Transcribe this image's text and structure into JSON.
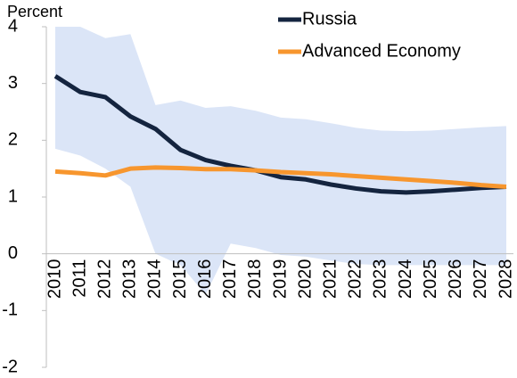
{
  "chart_data": {
    "type": "line",
    "y_label": "Percent",
    "categories": [
      "2010",
      "2011",
      "2012",
      "2013",
      "2014",
      "2015",
      "2016",
      "2017",
      "2018",
      "2019",
      "2020",
      "2021",
      "2022",
      "2023",
      "2024",
      "2025",
      "2026",
      "2027",
      "2028"
    ],
    "series": [
      {
        "name": "Russia",
        "color": "#14243f",
        "values": [
          3.13,
          2.85,
          2.76,
          2.42,
          2.2,
          1.83,
          1.65,
          1.55,
          1.47,
          1.35,
          1.31,
          1.22,
          1.15,
          1.1,
          1.08,
          1.1,
          1.13,
          1.16,
          1.18
        ]
      },
      {
        "name": "Advanced Economy",
        "color": "#f7962e",
        "values": [
          1.45,
          1.42,
          1.38,
          1.5,
          1.52,
          1.51,
          1.49,
          1.49,
          1.47,
          1.44,
          1.42,
          1.4,
          1.37,
          1.34,
          1.31,
          1.28,
          1.25,
          1.21,
          1.18
        ]
      }
    ],
    "range": {
      "color": "#dbe5f7",
      "upper": [
        4.0,
        4.0,
        3.8,
        3.87,
        2.62,
        2.7,
        2.57,
        2.6,
        2.52,
        2.4,
        2.37,
        2.3,
        2.22,
        2.17,
        2.16,
        2.17,
        2.2,
        2.23,
        2.25
      ],
      "lower": [
        1.85,
        1.73,
        1.5,
        1.18,
        0.0,
        -0.2,
        -0.72,
        0.18,
        0.1,
        -0.02,
        -0.05,
        -0.12,
        -0.18,
        -0.2,
        -0.2,
        -0.2,
        -0.2,
        -0.2,
        -0.2
      ]
    },
    "ylim": [
      -2,
      4
    ],
    "yticks": [
      -2,
      -1,
      0,
      1,
      2,
      3,
      4
    ],
    "legend": "top-right"
  }
}
